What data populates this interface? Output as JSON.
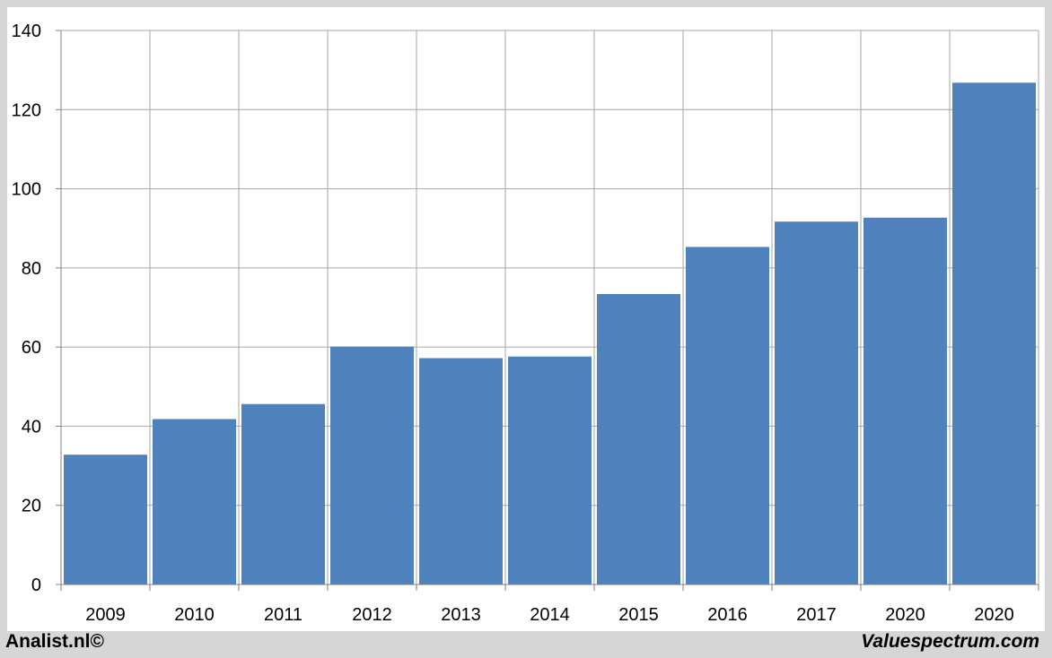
{
  "chart_data": {
    "type": "bar",
    "categories": [
      "2009",
      "2010",
      "2011",
      "2012",
      "2013",
      "2014",
      "2015",
      "2016",
      "2017",
      "2020",
      "2020"
    ],
    "values": [
      32.8,
      41.8,
      45.6,
      60.1,
      57.2,
      57.6,
      73.4,
      85.3,
      91.7,
      92.7,
      126.8
    ],
    "title": "",
    "xlabel": "",
    "ylabel": "",
    "ylim": [
      0,
      140
    ],
    "yticks": [
      "0",
      "20",
      "40",
      "60",
      "80",
      "100",
      "120",
      "140"
    ],
    "grid": true,
    "legend": "none",
    "colors": {
      "bar": "#4f81bd",
      "grid": "#a6a6a6",
      "axis": "#808080",
      "frame": "#d6d6d6"
    }
  },
  "footer": {
    "left": "Analist.nl©",
    "right": "Valuespectrum.com"
  }
}
